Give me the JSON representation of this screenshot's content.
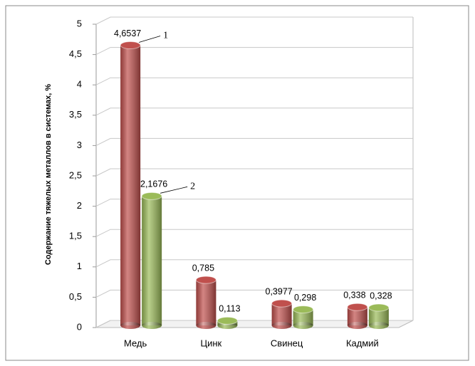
{
  "chart_data": {
    "type": "bar",
    "y_label": "Содержание тяжелых металлов в системах, %",
    "categories": [
      "Медь",
      "Цинк",
      "Свинец",
      "Кадмий"
    ],
    "series": [
      {
        "name": "1",
        "color": "#c0504d",
        "values": [
          4.6537,
          0.785,
          0.3977,
          0.338
        ],
        "value_labels": [
          "4,6537",
          "0,785",
          "0,3977",
          "0,338"
        ]
      },
      {
        "name": "2",
        "color": "#9bbb59",
        "values": [
          2.1676,
          0.113,
          0.298,
          0.328
        ],
        "value_labels": [
          "2,1676",
          "0,113",
          "0,298",
          "0,328"
        ]
      }
    ],
    "ylim": [
      0,
      5
    ],
    "yticks": [
      0,
      {
        "value": 0.5,
        "label": "0,5"
      },
      1,
      {
        "value": 1.5,
        "label": "1,5"
      },
      2,
      {
        "value": 2.5,
        "label": "2,5"
      },
      3,
      {
        "value": 3.5,
        "label": "3,5"
      },
      4,
      {
        "value": 4.5,
        "label": "4,5"
      },
      5
    ],
    "grid": true
  }
}
